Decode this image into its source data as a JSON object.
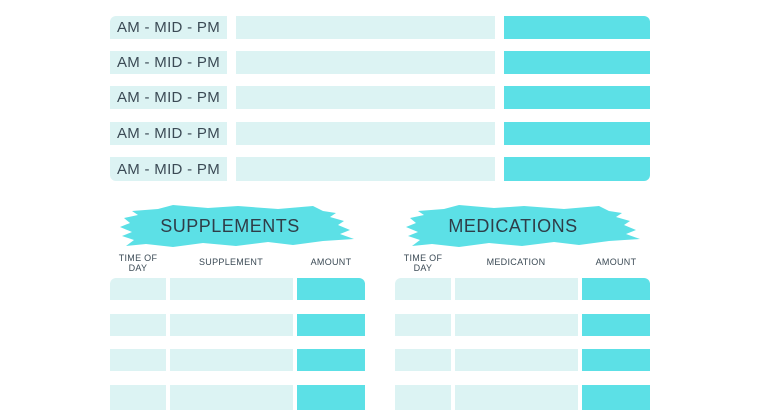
{
  "top_section": {
    "rows": [
      {
        "time_label": "AM - MID - PM"
      },
      {
        "time_label": "AM - MID - PM"
      },
      {
        "time_label": "AM - MID - PM"
      },
      {
        "time_label": "AM - MID - PM"
      },
      {
        "time_label": "AM - MID - PM"
      }
    ]
  },
  "supplements": {
    "title": "SUPPLEMENTS",
    "col_time": "TIME OF DAY",
    "col_item": "SUPPLEMENT",
    "col_amount": "AMOUNT"
  },
  "medications": {
    "title": "MEDICATIONS",
    "col_time": "TIME OF DAY",
    "col_item": "MEDICATION",
    "col_amount": "AMOUNT"
  },
  "colors": {
    "light": "#dcf3f3",
    "strong": "#5ce0e6",
    "text": "#2f3d48"
  }
}
